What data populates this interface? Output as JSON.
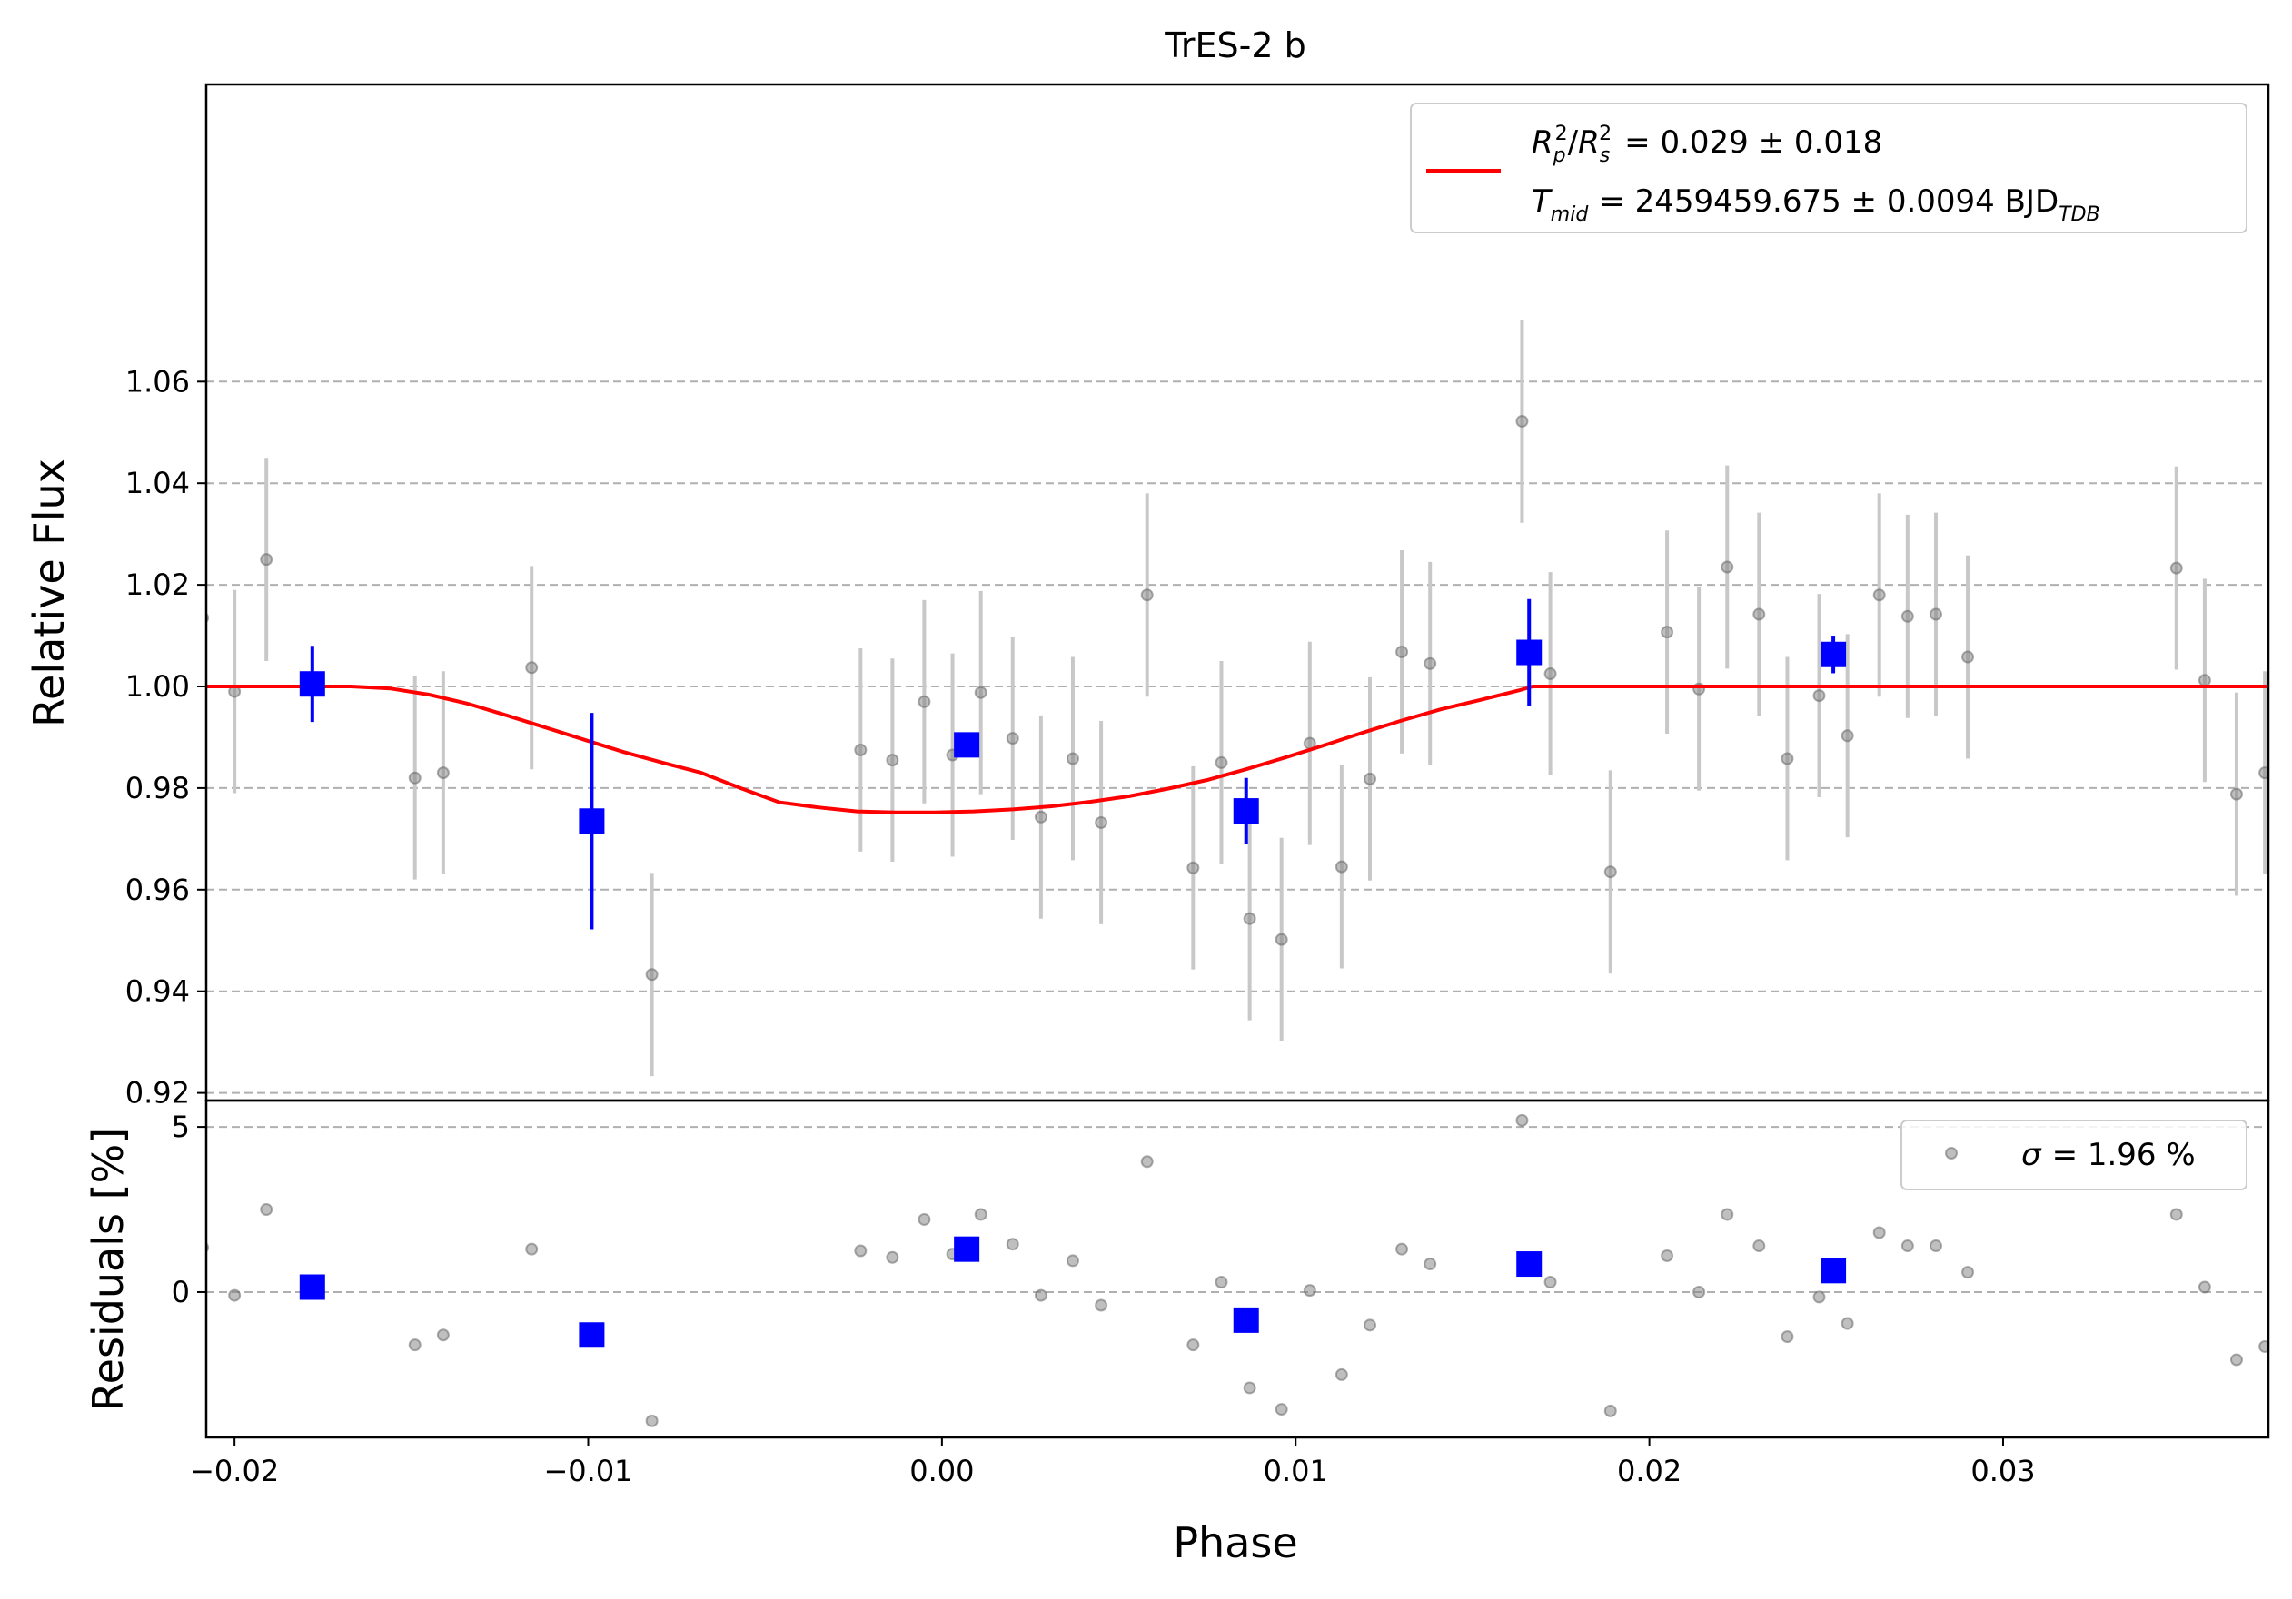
{
  "chart_data": [
    {
      "type": "scatter",
      "panel": "main",
      "title": "TrES-2 b",
      "xlabel": "",
      "ylabel": "Relative Flux",
      "xlim": [
        -0.0208,
        0.0375
      ],
      "ylim": [
        0.9185,
        1.1185
      ],
      "yticks": [
        0.92,
        0.94,
        0.96,
        0.98,
        1.0,
        1.02,
        1.04,
        1.06
      ],
      "ytick_labels": [
        "0.92",
        "0.94",
        "0.96",
        "0.98",
        "1.00",
        "1.02",
        "1.04",
        "1.06"
      ],
      "grid": "y-dashed",
      "legend_placement": "top-right",
      "legend": {
        "rp_rs_line": "R_p^2/R_s^2 = 0.029 ± 0.018",
        "tmid_line": "T_mid = 2459459.675 ± 0.0094 BJD_TDB",
        "rp_label": "= 0.029 ± 0.018",
        "tmid_label": "= 2459459.675 ± 0.0094 BJD",
        "tmid_subscript": "TDB"
      },
      "model": {
        "name": "transit model",
        "color": "#ff0000",
        "x": [
          -0.0208,
          -0.0167,
          -0.0156,
          -0.0145,
          -0.0134,
          -0.0123,
          -0.0112,
          -0.0101,
          -0.009,
          -0.0079,
          -0.0068,
          -0.0057,
          -0.0046,
          -0.0035,
          -0.0024,
          -0.0013,
          -0.0002,
          0.0009,
          0.002,
          0.0031,
          0.0042,
          0.0053,
          0.0064,
          0.0075,
          0.0086,
          0.0097,
          0.0108,
          0.0119,
          0.013,
          0.0141,
          0.0152,
          0.0163,
          0.0167,
          0.0375
        ],
        "y": [
          1.0,
          1.0,
          0.9996,
          0.9984,
          0.9966,
          0.9943,
          0.9919,
          0.9895,
          0.9871,
          0.985,
          0.983,
          0.98,
          0.9772,
          0.9762,
          0.9754,
          0.9752,
          0.9752,
          0.9754,
          0.9758,
          0.9764,
          0.9773,
          0.9784,
          0.9799,
          0.9816,
          0.9837,
          0.986,
          0.9884,
          0.9909,
          0.9933,
          0.9955,
          0.9973,
          0.9992,
          1.0,
          1.0
        ]
      },
      "unbinned": {
        "name": "data",
        "color": "#808080",
        "x": [
          -0.0209,
          -0.02,
          -0.0191,
          -0.0149,
          -0.0141,
          -0.0116,
          -0.0082,
          -0.0023,
          -0.0014,
          -0.0005,
          0.0003,
          0.0011,
          0.002,
          0.0028,
          0.0037,
          0.0045,
          0.0058,
          0.0071,
          0.0079,
          0.0087,
          0.0096,
          0.0104,
          0.0113,
          0.0121,
          0.013,
          0.0138,
          0.0164,
          0.0172,
          0.0189,
          0.0205,
          0.0214,
          0.0222,
          0.0231,
          0.0239,
          0.0248,
          0.0256,
          0.0265,
          0.0273,
          0.0281,
          0.029,
          0.0349,
          0.0357,
          0.0366,
          0.0374
        ],
        "y": [
          1.0135,
          0.999,
          1.025,
          0.982,
          0.983,
          1.0037,
          0.9433,
          0.9875,
          0.9855,
          0.997,
          0.9865,
          0.9988,
          0.9898,
          0.9743,
          0.9858,
          0.9732,
          1.018,
          0.9643,
          0.985,
          0.9543,
          0.9502,
          0.9888,
          0.9645,
          0.9818,
          1.0068,
          1.0045,
          1.0522,
          1.0025,
          0.9635,
          1.0107,
          0.9995,
          1.0235,
          1.0142,
          0.9858,
          0.9982,
          0.9903,
          1.018,
          1.0138,
          1.0142,
          1.0058,
          1.0233,
          1.0012,
          0.9788,
          0.983
        ],
        "err": [
          0.02,
          0.02,
          0.02,
          0.02,
          0.02,
          0.02,
          0.02,
          0.02,
          0.02,
          0.02,
          0.02,
          0.02,
          0.02,
          0.02,
          0.02,
          0.02,
          0.02,
          0.02,
          0.02,
          0.02,
          0.02,
          0.02,
          0.02,
          0.02,
          0.02,
          0.02,
          0.02,
          0.02,
          0.02,
          0.02,
          0.02,
          0.02,
          0.02,
          0.02,
          0.02,
          0.02,
          0.02,
          0.02,
          0.02,
          0.02,
          0.02,
          0.02,
          0.02,
          0.02
        ]
      },
      "binned": {
        "name": "binned data",
        "color": "#0000ff",
        "x": [
          -0.0178,
          -0.0099,
          0.0007,
          0.0086,
          0.0166,
          0.0252
        ],
        "y": [
          1.0005,
          0.9735,
          0.9885,
          0.9755,
          1.0067,
          1.0063
        ],
        "err": [
          0.0075,
          0.0213,
          0.0022,
          0.0065,
          0.0105,
          0.0037
        ]
      }
    },
    {
      "type": "scatter",
      "panel": "residuals",
      "xlabel": "Phase",
      "ylabel": "Residuals [%]",
      "xlim": [
        -0.0208,
        0.0375
      ],
      "ylim": [
        -4.4,
        5.8
      ],
      "xticks": [
        -0.02,
        -0.01,
        0.0,
        0.01,
        0.02,
        0.03
      ],
      "xtick_labels": [
        "−0.02",
        "−0.01",
        "0.00",
        "0.01",
        "0.02",
        "0.03"
      ],
      "yticks": [
        0,
        5
      ],
      "ytick_labels": [
        "0",
        "5"
      ],
      "grid": "y-dashed",
      "legend_placement": "top-right",
      "legend": {
        "sigma_label": "= 1.96 %"
      },
      "unbinned": {
        "name": "residuals",
        "color": "#808080",
        "x": [
          -0.0209,
          -0.02,
          -0.0191,
          -0.0149,
          -0.0141,
          -0.0116,
          -0.0082,
          -0.0023,
          -0.0014,
          -0.0005,
          0.0003,
          0.0011,
          0.002,
          0.0028,
          0.0037,
          0.0045,
          0.0058,
          0.0071,
          0.0079,
          0.0087,
          0.0096,
          0.0104,
          0.0113,
          0.0121,
          0.013,
          0.0138,
          0.0164,
          0.0172,
          0.0189,
          0.0205,
          0.0214,
          0.0222,
          0.0231,
          0.0239,
          0.0248,
          0.0256,
          0.0265,
          0.0273,
          0.0281,
          0.029,
          0.0349,
          0.0357,
          0.0366,
          0.0374
        ],
        "y": [
          1.35,
          -0.1,
          2.5,
          -1.6,
          -1.3,
          1.3,
          -3.9,
          1.25,
          1.05,
          2.2,
          1.15,
          2.35,
          1.45,
          -0.1,
          0.95,
          -0.4,
          3.95,
          -1.6,
          0.3,
          -2.9,
          -3.55,
          0.05,
          -2.5,
          -1.0,
          1.3,
          0.85,
          5.2,
          0.3,
          -3.6,
          1.1,
          0.0,
          2.35,
          1.4,
          -1.35,
          -0.15,
          -0.95,
          1.8,
          1.4,
          1.4,
          0.6,
          2.35,
          0.15,
          -2.05,
          -1.65
        ]
      },
      "binned": {
        "name": "binned residuals",
        "color": "#0000ff",
        "x": [
          -0.0178,
          -0.0099,
          0.0007,
          0.0086,
          0.0166,
          0.0252
        ],
        "y": [
          0.15,
          -1.3,
          1.3,
          -0.85,
          0.85,
          0.65
        ]
      }
    }
  ]
}
